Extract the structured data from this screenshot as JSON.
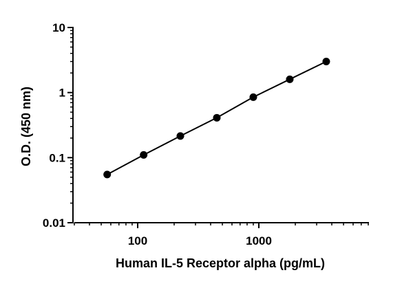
{
  "chart_data": {
    "type": "scatter",
    "title": "",
    "xlabel": "Human IL-5 Receptor alpha (pg/mL)",
    "ylabel": "O.D. (450 nm)",
    "x_scale": "log",
    "y_scale": "log",
    "xlim": [
      30,
      8000
    ],
    "ylim": [
      0.01,
      10
    ],
    "x_ticks": [
      {
        "value": 100,
        "label": "100"
      },
      {
        "value": 1000,
        "label": "1000"
      }
    ],
    "y_ticks": [
      {
        "value": 0.01,
        "label": "0.01"
      },
      {
        "value": 0.1,
        "label": "0.1"
      },
      {
        "value": 1,
        "label": "1"
      },
      {
        "value": 10,
        "label": "10"
      }
    ],
    "grid": false,
    "legend": "none",
    "fit_line": true,
    "series": [
      {
        "color": "#000000",
        "points": [
          {
            "x": 56,
            "y": 0.055
          },
          {
            "x": 112,
            "y": 0.11
          },
          {
            "x": 225,
            "y": 0.215
          },
          {
            "x": 450,
            "y": 0.41
          },
          {
            "x": 900,
            "y": 0.85
          },
          {
            "x": 1800,
            "y": 1.6
          },
          {
            "x": 3600,
            "y": 3.0
          }
        ]
      }
    ]
  }
}
